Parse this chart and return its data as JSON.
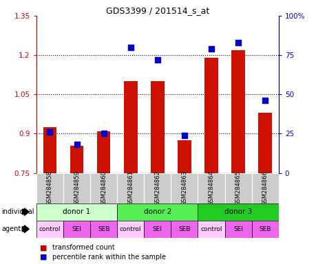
{
  "title": "GDS3399 / 201514_s_at",
  "samples": [
    "GSM284858",
    "GSM284859",
    "GSM284860",
    "GSM284861",
    "GSM284862",
    "GSM284863",
    "GSM284864",
    "GSM284865",
    "GSM284866"
  ],
  "transformed_count": [
    0.925,
    0.855,
    0.91,
    1.1,
    1.1,
    0.875,
    1.19,
    1.22,
    0.98
  ],
  "percentile_rank": [
    26,
    18,
    25,
    80,
    72,
    24,
    79,
    83,
    46
  ],
  "ylim_left": [
    0.75,
    1.35
  ],
  "ylim_right": [
    0,
    100
  ],
  "yticks_left": [
    0.75,
    0.9,
    1.05,
    1.2,
    1.35
  ],
  "yticks_right": [
    0,
    25,
    50,
    75,
    100
  ],
  "ytick_labels_left": [
    "0.75",
    "0.9",
    "1.05",
    "1.2",
    "1.35"
  ],
  "ytick_labels_right": [
    "0",
    "25",
    "50",
    "75",
    "100%"
  ],
  "hlines": [
    0.9,
    1.05,
    1.2
  ],
  "bar_color": "#cc1100",
  "dot_color": "#0000cc",
  "bar_width": 0.5,
  "dot_size": 30,
  "individual_labels": [
    "donor 1",
    "donor 2",
    "donor 3"
  ],
  "individual_colors": [
    "#ccffcc",
    "#55ee55",
    "#22cc22"
  ],
  "agent_colors_pattern": [
    "#ffccff",
    "#ee66ee",
    "#ee66ee"
  ],
  "agent_labels": [
    "control",
    "SEI",
    "SEB",
    "control",
    "SEI",
    "SEB",
    "control",
    "SEI",
    "SEB"
  ],
  "sample_bg_color": "#cccccc",
  "left_axis_color": "#cc0000",
  "right_axis_color": "#0000cc",
  "legend_red": "#cc0000",
  "legend_blue": "#0000cc"
}
